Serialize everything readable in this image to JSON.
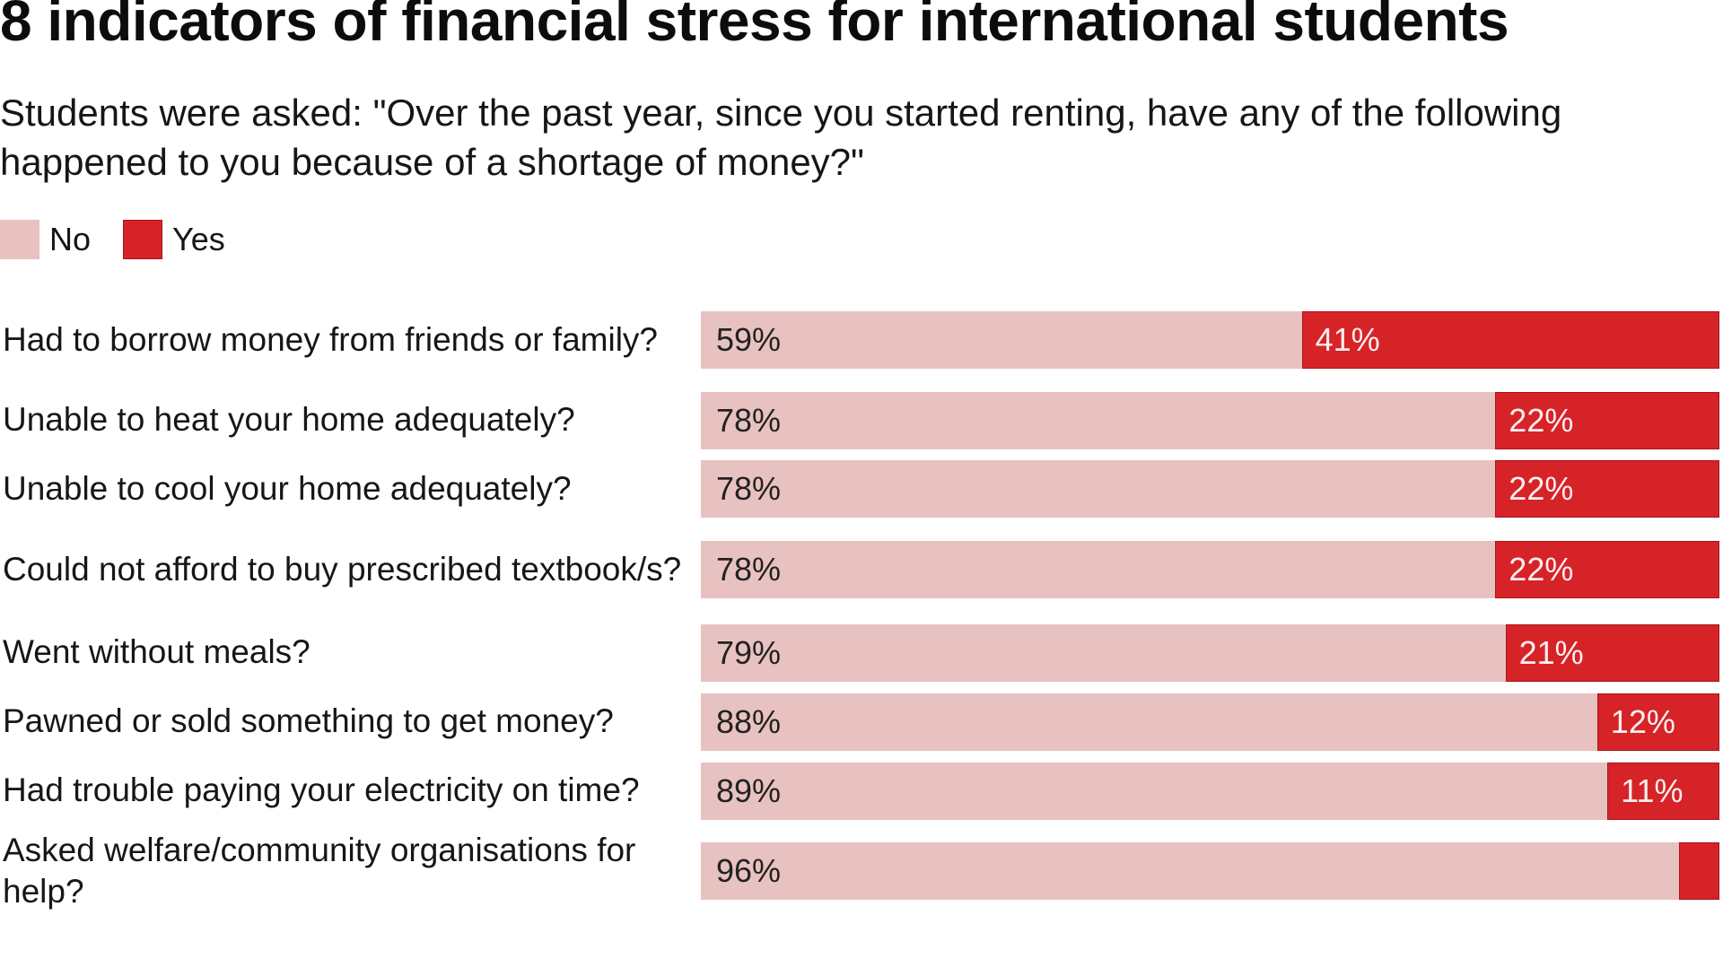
{
  "title": "8 indicators of financial stress for international students",
  "subtitle": "Students were asked: \"Over the past year, since you started renting, have any of the following happened to you because of a shortage of money?\"",
  "legend": [
    {
      "label": "No",
      "color": "#e8c2c0"
    },
    {
      "label": "Yes",
      "color": "#d62328"
    }
  ],
  "rows": [
    {
      "label": "Had to borrow money from friends or family?",
      "no": 59,
      "yes": 41,
      "no_label": "59%",
      "yes_label": "41%"
    },
    {
      "label": "Unable to heat your home adequately?",
      "no": 78,
      "yes": 22,
      "no_label": "78%",
      "yes_label": "22%"
    },
    {
      "label": "Unable to cool your home adequately?",
      "no": 78,
      "yes": 22,
      "no_label": "78%",
      "yes_label": "22%"
    },
    {
      "label": "Could not afford to buy prescribed textbook/s?",
      "no": 78,
      "yes": 22,
      "no_label": "78%",
      "yes_label": "22%"
    },
    {
      "label": "Went without meals?",
      "no": 79,
      "yes": 21,
      "no_label": "79%",
      "yes_label": "21%"
    },
    {
      "label": "Pawned or sold something to get money?",
      "no": 88,
      "yes": 12,
      "no_label": "88%",
      "yes_label": "12%"
    },
    {
      "label": "Had trouble paying your electricity on time?",
      "no": 89,
      "yes": 11,
      "no_label": "89%",
      "yes_label": "11%"
    },
    {
      "label": "Asked welfare/community organisations for help?",
      "no": 96,
      "yes": 4,
      "no_label": "96%",
      "yes_label": ""
    }
  ],
  "chart_data": {
    "type": "bar",
    "orientation": "horizontal",
    "stacked": true,
    "normalized_percent": true,
    "title": "8 indicators of financial stress for international students",
    "subtitle": "Students were asked: \"Over the past year, since you started renting, have any of the following happened to you because of a shortage of money?\"",
    "categories": [
      "Had to borrow money from friends or family?",
      "Unable to heat your home adequately?",
      "Unable to cool your home adequately?",
      "Could not afford to buy prescribed textbook/s?",
      "Went without meals?",
      "Pawned or sold something to get money?",
      "Had trouble paying your electricity on time?",
      "Asked welfare/community organisations for help?"
    ],
    "series": [
      {
        "name": "No",
        "color": "#e8c2c0",
        "values": [
          59,
          78,
          78,
          78,
          79,
          88,
          89,
          96
        ]
      },
      {
        "name": "Yes",
        "color": "#d62328",
        "values": [
          41,
          22,
          22,
          22,
          21,
          12,
          11,
          4
        ]
      }
    ],
    "data_labels": {
      "No": [
        "59%",
        "78%",
        "78%",
        "78%",
        "79%",
        "88%",
        "89%",
        "96%"
      ],
      "Yes": [
        "41%",
        "22%",
        "22%",
        "22%",
        "21%",
        "12%",
        "11%",
        ""
      ]
    },
    "xlabel": "",
    "ylabel": "",
    "xlim": [
      0,
      100
    ],
    "grid": false,
    "axes_visible": false,
    "legend_position": "top-left"
  }
}
